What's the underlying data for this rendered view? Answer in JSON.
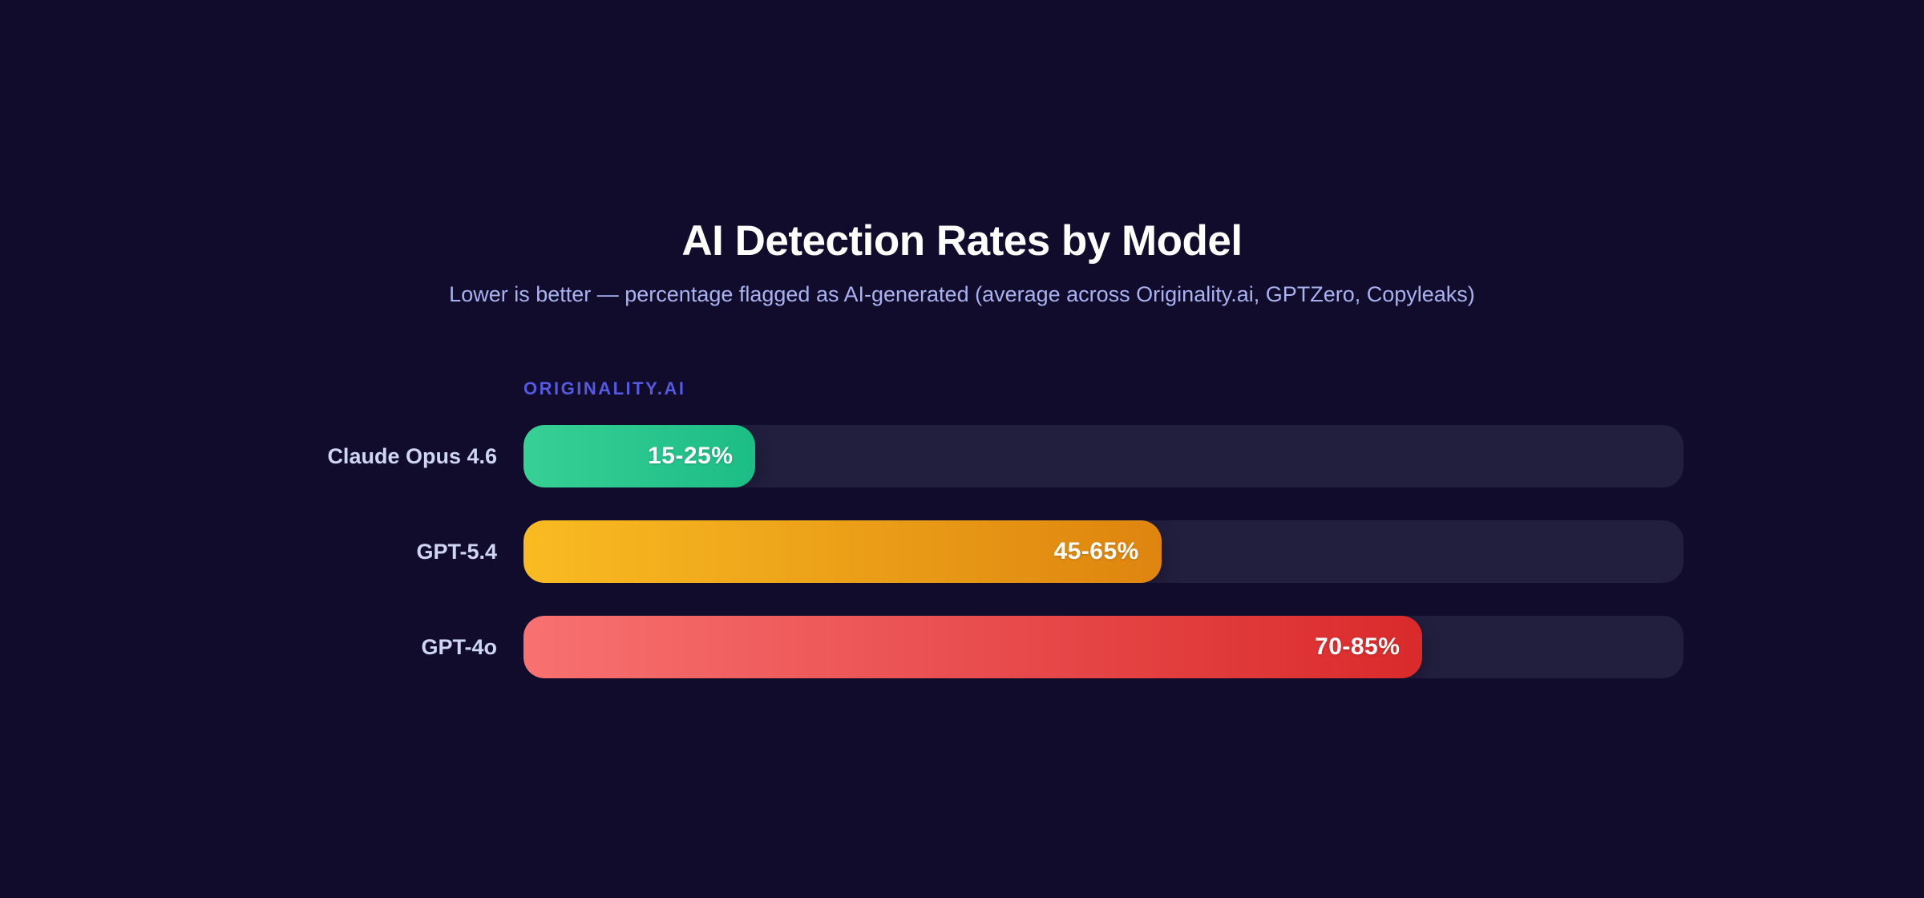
{
  "header": {
    "title": "AI Detection Rates by Model",
    "subtitle": "Lower is better — percentage flagged as AI-generated (average across Originality.ai, GPTZero, Copyleaks)"
  },
  "chart_data": {
    "type": "bar",
    "orientation": "horizontal",
    "title": "AI Detection Rates by Model",
    "subtitle": "Lower is better — percentage flagged as AI-generated (average across Originality.ai, GPTZero, Copyleaks)",
    "group_label": "ORIGINALITY.AI",
    "xlabel": "",
    "ylabel": "",
    "xlim": [
      0,
      100
    ],
    "grid": false,
    "legend_position": "none",
    "categories": [
      "Claude Opus 4.6",
      "GPT-5.4",
      "GPT-4o"
    ],
    "values": [
      20,
      55,
      77.5
    ],
    "value_ranges": [
      [
        15,
        25
      ],
      [
        45,
        65
      ],
      [
        70,
        85
      ]
    ],
    "bars": [
      {
        "label": "Claude Opus 4.6",
        "value_label": "15-25%",
        "low": 15,
        "high": 25,
        "mid_pct": 20,
        "color_from": "#37d095",
        "color_to": "#1cbd86"
      },
      {
        "label": "GPT-5.4",
        "value_label": "45-65%",
        "low": 45,
        "high": 65,
        "mid_pct": 55,
        "color_from": "#f9bb22",
        "color_to": "#de850f"
      },
      {
        "label": "GPT-4o",
        "value_label": "70-85%",
        "low": 70,
        "high": 85,
        "mid_pct": 77.5,
        "color_from": "#f87171",
        "color_to": "#da2a2b"
      }
    ],
    "colors": {
      "background": "#110b2c",
      "track": "#221e3e",
      "accent_label": "#5659e1",
      "subtitle_text": "#a9b2f0",
      "category_text": "#ced6f4",
      "title_text": "#ffffff",
      "value_text": "#ffffff"
    }
  }
}
